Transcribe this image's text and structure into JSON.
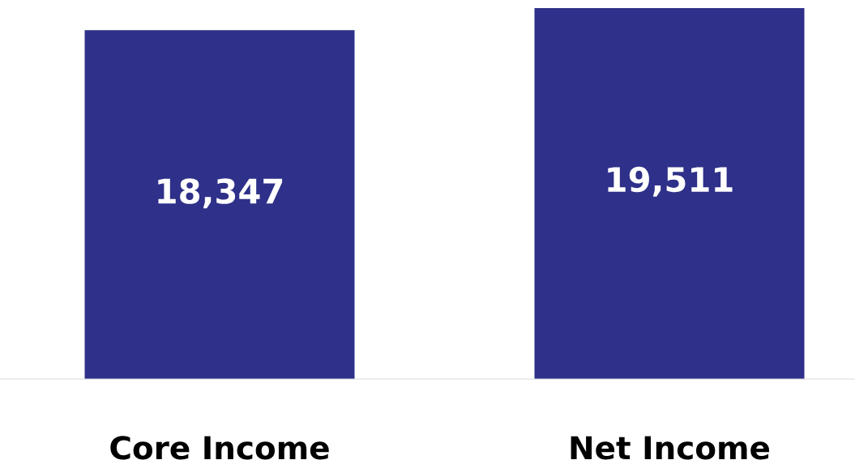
{
  "chart_data": {
    "type": "bar",
    "categories": [
      "Core Income",
      "Net Income"
    ],
    "values": [
      18347,
      19511
    ],
    "color": "#2e3089",
    "value_labels": [
      "18,347",
      "19,511"
    ],
    "grid": false,
    "legend": false,
    "tick_labels": "x"
  }
}
